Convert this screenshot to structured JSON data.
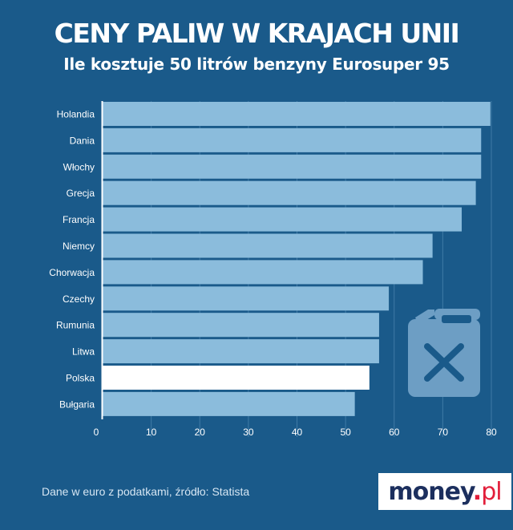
{
  "header": {
    "title": "CENY PALIW W KRAJACH UNII",
    "subtitle": "Ile kosztuje 50 litrów benzyny Eurosuper 95"
  },
  "footer": {
    "source": "Dane w euro z podatkami, źródło: Statista"
  },
  "logo": {
    "main": "money",
    "dot": ".",
    "tld": "pl"
  },
  "icon": "fuel-canister-icon",
  "colors": {
    "background": "#1a5a8a",
    "bar": "#8bbcdc",
    "highlight_bar": "#ffffff",
    "grid": "#3f7aa6",
    "icon": "#6d9ec4"
  },
  "chart_data": {
    "type": "bar",
    "orientation": "horizontal",
    "categories": [
      "Holandia",
      "Dania",
      "Włochy",
      "Grecja",
      "Francja",
      "Niemcy",
      "Chorwacja",
      "Czechy",
      "Rumunia",
      "Litwa",
      "Polska",
      "Bułgaria"
    ],
    "values": [
      79.8,
      77.9,
      77.9,
      76.8,
      73.9,
      67.9,
      65.9,
      58.9,
      56.9,
      56.9,
      54.9,
      51.9
    ],
    "highlight": "Polska",
    "xlim": [
      0,
      80
    ],
    "xticks": [
      0,
      10,
      20,
      30,
      40,
      50,
      60,
      70,
      80
    ],
    "grid": true
  }
}
